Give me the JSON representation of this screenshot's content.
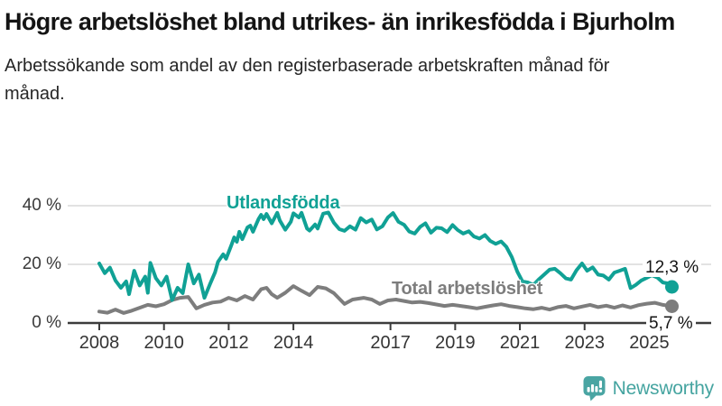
{
  "header": {
    "title": "Högre arbetslöshet bland utrikes- än inrikesfödda i Bjurholm",
    "subtitle": "Arbetssökande som andel av den registerbaserade arbetskraften månad för månad."
  },
  "branding": {
    "logo_text": "Newsworthy",
    "logo_color": "#45a4a0",
    "icon": "bar-chart-speech-bubble-icon"
  },
  "chart_data": {
    "type": "line",
    "unit": "%",
    "x_axis": {
      "ticks": [
        2008,
        2010,
        2012,
        2014,
        2017,
        2019,
        2021,
        2023,
        2025
      ],
      "range": [
        2007.0,
        2026.7
      ]
    },
    "y_axis": {
      "ticks": [
        0,
        20,
        40
      ],
      "tick_labels": [
        "0 %",
        "20 %",
        "40 %"
      ],
      "range": [
        0,
        43
      ],
      "grid": true
    },
    "legend_position": "inline-labels",
    "series": [
      {
        "id": "utlandsfodda",
        "name": "Utlandsfödda",
        "color": "#10a195",
        "end_label": "12,3 %",
        "end_value": 12.3,
        "x": [
          2008.0,
          2008.17,
          2008.33,
          2008.5,
          2008.67,
          2008.83,
          2008.92,
          2009.08,
          2009.25,
          2009.42,
          2009.5,
          2009.58,
          2009.75,
          2009.92,
          2010.08,
          2010.25,
          2010.42,
          2010.58,
          2010.75,
          2010.92,
          2011.08,
          2011.25,
          2011.42,
          2011.58,
          2011.67,
          2011.83,
          2011.92,
          2012.08,
          2012.17,
          2012.25,
          2012.33,
          2012.42,
          2012.58,
          2012.67,
          2012.75,
          2012.92,
          2013.0,
          2013.08,
          2013.17,
          2013.33,
          2013.5,
          2013.58,
          2013.75,
          2013.92,
          2014.0,
          2014.17,
          2014.25,
          2014.42,
          2014.5,
          2014.67,
          2014.75,
          2014.92,
          2015.08,
          2015.25,
          2015.42,
          2015.58,
          2015.75,
          2015.92,
          2016.08,
          2016.25,
          2016.42,
          2016.58,
          2016.75,
          2016.92,
          2017.08,
          2017.25,
          2017.42,
          2017.58,
          2017.75,
          2017.92,
          2018.08,
          2018.25,
          2018.42,
          2018.58,
          2018.75,
          2018.92,
          2019.08,
          2019.25,
          2019.42,
          2019.58,
          2019.75,
          2019.92,
          2020.08,
          2020.25,
          2020.42,
          2020.58,
          2020.75,
          2020.92,
          2021.08,
          2021.25,
          2021.42,
          2021.58,
          2021.75,
          2021.92,
          2022.08,
          2022.25,
          2022.42,
          2022.58,
          2022.75,
          2022.92,
          2023.08,
          2023.25,
          2023.42,
          2023.58,
          2023.75,
          2023.92,
          2024.08,
          2024.25,
          2024.42,
          2024.58,
          2024.75,
          2024.92,
          2025.08,
          2025.25,
          2025.42,
          2025.58,
          2025.7
        ],
        "values": [
          20.3,
          17.0,
          18.9,
          14.5,
          12.0,
          14.2,
          9.8,
          17.8,
          12.8,
          15.8,
          10.3,
          20.5,
          15.3,
          12.8,
          15.8,
          7.8,
          12.0,
          10.2,
          20.0,
          13.5,
          16.5,
          8.6,
          13.2,
          17.3,
          20.9,
          23.4,
          21.9,
          26.5,
          29.2,
          27.7,
          31.1,
          28.6,
          32.6,
          33.2,
          31.1,
          35.4,
          36.9,
          35.4,
          37.2,
          34.0,
          37.6,
          35.0,
          31.8,
          34.5,
          37.4,
          36.0,
          37.6,
          32.2,
          31.5,
          33.6,
          32.2,
          37.3,
          37.7,
          34.2,
          32.0,
          31.4,
          33.0,
          31.8,
          35.8,
          34.3,
          35.3,
          31.9,
          33.0,
          36.0,
          37.5,
          34.5,
          33.5,
          31.2,
          30.5,
          32.8,
          34.0,
          30.8,
          32.5,
          32.3,
          31.0,
          33.4,
          31.7,
          30.5,
          31.3,
          29.5,
          28.8,
          30.0,
          28.0,
          27.0,
          27.8,
          26.0,
          22.5,
          17.5,
          14.2,
          13.8,
          13.0,
          14.8,
          16.5,
          18.2,
          18.5,
          17.0,
          15.2,
          14.8,
          18.0,
          20.3,
          17.8,
          19.0,
          16.5,
          16.2,
          14.8,
          17.2,
          17.8,
          18.5,
          11.9,
          13.0,
          14.5,
          15.4,
          16.3,
          15.5,
          13.8,
          13.5,
          12.3
        ]
      },
      {
        "id": "total",
        "name": "Total arbetslöshet",
        "color": "#7d7d7d",
        "end_label": "5,7 %",
        "end_value": 5.7,
        "x": [
          2008.0,
          2008.25,
          2008.5,
          2008.75,
          2009.0,
          2009.25,
          2009.5,
          2009.75,
          2010.0,
          2010.25,
          2010.5,
          2010.75,
          2011.0,
          2011.25,
          2011.5,
          2011.75,
          2012.0,
          2012.25,
          2012.5,
          2012.75,
          2013.0,
          2013.17,
          2013.33,
          2013.5,
          2013.75,
          2014.0,
          2014.25,
          2014.5,
          2014.75,
          2015.0,
          2015.25,
          2015.58,
          2015.83,
          2016.17,
          2016.42,
          2016.67,
          2016.92,
          2017.17,
          2017.42,
          2017.67,
          2017.92,
          2018.17,
          2018.42,
          2018.67,
          2018.92,
          2019.17,
          2019.42,
          2019.67,
          2019.92,
          2020.17,
          2020.42,
          2020.67,
          2020.92,
          2021.17,
          2021.42,
          2021.67,
          2021.92,
          2022.17,
          2022.42,
          2022.67,
          2022.92,
          2023.17,
          2023.42,
          2023.67,
          2023.92,
          2024.17,
          2024.42,
          2024.67,
          2024.92,
          2025.17,
          2025.42,
          2025.58,
          2025.7
        ],
        "values": [
          3.9,
          3.5,
          4.6,
          3.4,
          4.2,
          5.2,
          6.2,
          5.7,
          6.4,
          7.8,
          8.6,
          8.9,
          5.0,
          6.2,
          7.0,
          7.3,
          8.6,
          7.7,
          9.2,
          8.0,
          11.5,
          12.0,
          9.8,
          8.6,
          10.3,
          12.6,
          11.0,
          9.5,
          12.3,
          11.8,
          10.2,
          6.5,
          8.0,
          8.6,
          8.0,
          6.5,
          7.7,
          8.0,
          7.5,
          7.0,
          7.2,
          6.8,
          6.3,
          5.8,
          6.2,
          5.8,
          5.4,
          5.0,
          5.5,
          6.0,
          6.4,
          5.8,
          5.4,
          5.0,
          4.7,
          5.2,
          4.6,
          5.4,
          5.8,
          5.0,
          5.6,
          6.2,
          5.4,
          5.9,
          5.2,
          6.0,
          5.3,
          6.1,
          6.6,
          6.9,
          6.2,
          5.9,
          5.7
        ]
      }
    ]
  }
}
